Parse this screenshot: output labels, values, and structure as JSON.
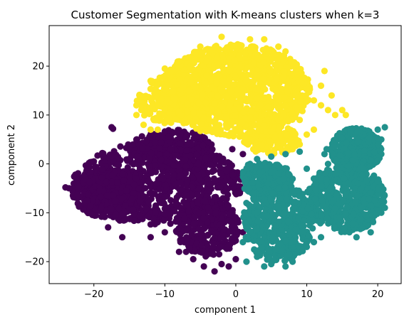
{
  "chart_data": {
    "type": "scatter",
    "title": "Customer Segmentation with K-means clusters when k=3",
    "xlabel": "component 1",
    "ylabel": "component 2",
    "xlim": [
      -26.3,
      23.3
    ],
    "ylim": [
      -24.5,
      28.3
    ],
    "xticks": [
      -20,
      -10,
      0,
      10,
      20
    ],
    "yticks": [
      -20,
      -10,
      0,
      10,
      20
    ],
    "grid": false,
    "legend": "none",
    "series": [
      {
        "color": "#440154",
        "blobs": [
          {
            "cx": -11,
            "cy": -4,
            "rx": 12,
            "ry": 8.5,
            "n": 900
          },
          {
            "cx": -18,
            "cy": -6,
            "rx": 5,
            "ry": 5,
            "n": 300
          },
          {
            "cx": -4,
            "cy": -13,
            "rx": 4.5,
            "ry": 6,
            "n": 300
          },
          {
            "cx": -9,
            "cy": 3,
            "rx": 6,
            "ry": 4,
            "n": 250
          }
        ],
        "points": [
          [
            -23.5,
            -5
          ],
          [
            -24,
            -4.8
          ],
          [
            -22.5,
            -3
          ],
          [
            -20,
            0.5
          ],
          [
            -17.5,
            1.5
          ],
          [
            -14,
            5
          ],
          [
            -12,
            6
          ],
          [
            -10,
            6.5
          ],
          [
            -17.5,
            7.5
          ],
          [
            -17.3,
            7.2
          ],
          [
            -18,
            -13
          ],
          [
            -16,
            -15
          ],
          [
            -12,
            -15
          ],
          [
            -10,
            -14
          ],
          [
            -8,
            -18
          ],
          [
            -4.5,
            -21
          ],
          [
            -3,
            -22
          ],
          [
            -1,
            -21
          ],
          [
            0,
            -19.5
          ],
          [
            1,
            -14
          ],
          [
            -6,
            -19.5
          ],
          [
            -7,
            -18
          ],
          [
            -2,
            -20.5
          ],
          [
            0.5,
            -6
          ],
          [
            1,
            2
          ],
          [
            -0.5,
            3
          ]
        ],
        "bounds": {
          "xmin": -24.2,
          "xmax": 1.5,
          "ymin": -22.5,
          "ymax": 8
        }
      },
      {
        "color": "#fde725",
        "blobs": [
          {
            "cx": 0,
            "cy": 15,
            "rx": 10.5,
            "ry": 9.5,
            "n": 1300
          },
          {
            "cx": -9,
            "cy": 13,
            "rx": 5,
            "ry": 5,
            "n": 200
          },
          {
            "cx": 5,
            "cy": 5,
            "rx": 4,
            "ry": 3,
            "n": 150
          }
        ],
        "points": [
          [
            -14,
            10
          ],
          [
            -13,
            8
          ],
          [
            -12,
            7
          ],
          [
            -11,
            7
          ],
          [
            -13.5,
            13
          ],
          [
            -14,
            12
          ],
          [
            -12,
            17
          ],
          [
            -10,
            19.5
          ],
          [
            -9,
            19
          ],
          [
            11,
            13
          ],
          [
            12,
            12
          ],
          [
            13,
            11
          ],
          [
            14,
            10
          ],
          [
            15,
            11
          ],
          [
            15.5,
            10
          ],
          [
            13.5,
            14
          ],
          [
            12,
            16
          ],
          [
            12.5,
            19
          ],
          [
            9,
            9
          ],
          [
            11,
            7
          ],
          [
            10,
            6
          ],
          [
            9,
            4
          ],
          [
            8,
            3
          ],
          [
            -2,
            26
          ],
          [
            2,
            25.5
          ],
          [
            4,
            25.5
          ],
          [
            -5,
            24
          ],
          [
            7,
            23
          ],
          [
            6,
            24
          ],
          [
            -8,
            21
          ]
        ],
        "bounds": {
          "xmin": -14.5,
          "xmax": 15.6,
          "ymin": 0.5,
          "ymax": 26.2
        }
      },
      {
        "color": "#21918c",
        "blobs": [
          {
            "cx": 17,
            "cy": 3,
            "rx": 3.7,
            "ry": 4.3,
            "n": 400
          },
          {
            "cx": 15.5,
            "cy": -7,
            "rx": 5.5,
            "ry": 7,
            "n": 600
          },
          {
            "cx": 6,
            "cy": -12,
            "rx": 5,
            "ry": 8,
            "n": 500
          },
          {
            "cx": 4,
            "cy": -3,
            "rx": 4,
            "ry": 3.5,
            "n": 250
          }
        ],
        "points": [
          [
            1.5,
            -20
          ],
          [
            3,
            -19
          ],
          [
            4,
            -21
          ],
          [
            5,
            -20.5
          ],
          [
            7,
            -21
          ],
          [
            8,
            -20
          ],
          [
            10,
            -17
          ],
          [
            11,
            -16
          ],
          [
            12,
            -15
          ],
          [
            1,
            -16
          ],
          [
            1.3,
            -12
          ],
          [
            1.5,
            -8
          ],
          [
            2,
            0
          ],
          [
            3,
            1
          ],
          [
            5,
            1.5
          ],
          [
            7,
            2
          ],
          [
            9,
            2.5
          ],
          [
            10,
            -1
          ],
          [
            11,
            -3
          ],
          [
            13,
            0
          ],
          [
            12.5,
            2
          ],
          [
            12.8,
            3
          ],
          [
            14,
            -2
          ],
          [
            20,
            7
          ],
          [
            21,
            7.5
          ],
          [
            20.5,
            5
          ],
          [
            21,
            -9
          ],
          [
            20.5,
            -10
          ],
          [
            19,
            -14
          ],
          [
            17,
            -15
          ],
          [
            16,
            -14
          ]
        ],
        "bounds": {
          "xmin": 1.0,
          "xmax": 21.2,
          "ymin": -21.5,
          "ymax": 8.5
        }
      }
    ]
  }
}
